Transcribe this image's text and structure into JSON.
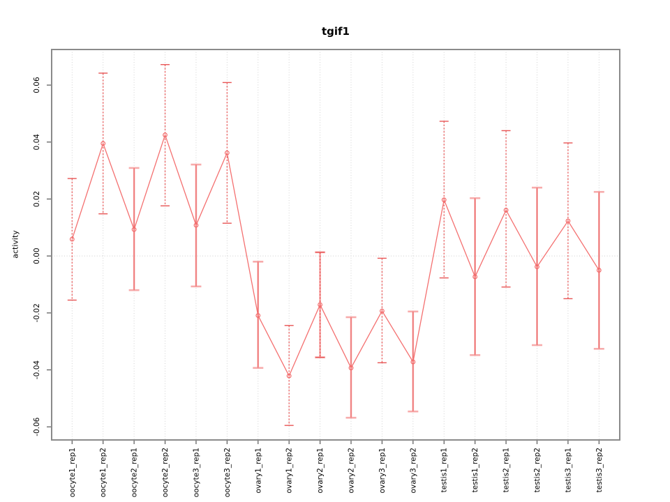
{
  "chart_data": {
    "type": "line",
    "title": "tgif1",
    "xlabel": "",
    "ylabel": "activity",
    "categories": [
      "oocyte1_rep1",
      "oocyte1_rep2",
      "oocyte2_rep1",
      "oocyte2_rep2",
      "oocyte3_rep1",
      "oocyte3_rep2",
      "ovary1_rep1",
      "ovary1_rep2",
      "ovary2_rep1",
      "ovary2_rep2",
      "ovary3_rep1",
      "ovary3_rep2",
      "testis1_rep1",
      "testis1_rep2",
      "testis2_rep1",
      "testis2_rep2",
      "testis3_rep1",
      "testis3_rep2"
    ],
    "series": [
      {
        "name": "activity",
        "values": [
          0.0059,
          0.0395,
          0.0093,
          0.0425,
          0.0108,
          0.0362,
          -0.0209,
          -0.0421,
          -0.0171,
          -0.0393,
          -0.0193,
          -0.0372,
          0.0197,
          -0.0073,
          0.0161,
          -0.0038,
          0.0123,
          -0.005
        ]
      }
    ],
    "error_low": [
      -0.0155,
      0.0148,
      -0.012,
      0.0176,
      -0.0107,
      0.0115,
      -0.0393,
      -0.0595,
      -0.0356,
      -0.0568,
      -0.0375,
      -0.0546,
      -0.0077,
      -0.0348,
      -0.0109,
      -0.0313,
      -0.015,
      -0.0326
    ],
    "error_high": [
      0.0272,
      0.0642,
      0.0309,
      0.0672,
      0.0321,
      0.0609,
      -0.002,
      -0.0244,
      0.0013,
      -0.0215,
      -0.0008,
      -0.0195,
      0.0473,
      0.0203,
      0.044,
      0.024,
      0.0397,
      0.0225
    ],
    "error_bar_styles": [
      "dashed",
      "dashed",
      "solid",
      "dashed",
      "solid",
      "dashed",
      "solid",
      "dashed",
      "both",
      "solid",
      "dashed",
      "solid",
      "dashed",
      "solid",
      "dashed",
      "solid",
      "dashed",
      "solid"
    ],
    "yticks": [
      -0.06,
      -0.04,
      -0.02,
      0.0,
      0.02,
      0.04,
      0.06
    ],
    "ytick_labels": [
      "-0.06",
      "-0.04",
      "-0.02",
      "0.00",
      "0.02",
      "0.04",
      "0.06"
    ],
    "ylim": [
      -0.0646,
      0.0725
    ],
    "grid": "vertical dotted gridline at each category; horizontal dotted gridline at 0 only",
    "legend": "none",
    "marker": "open-circle"
  },
  "colors": {
    "series_line": "#f47070",
    "marker_stroke": "#f26b6b",
    "error_bar_dashed": "#e85555",
    "error_bar_pale": "#f7abab",
    "grid": "#cccccc",
    "plot_border": "#8a8a8a",
    "tick": "#555555",
    "text": "#000000",
    "background": "#ffffff"
  }
}
